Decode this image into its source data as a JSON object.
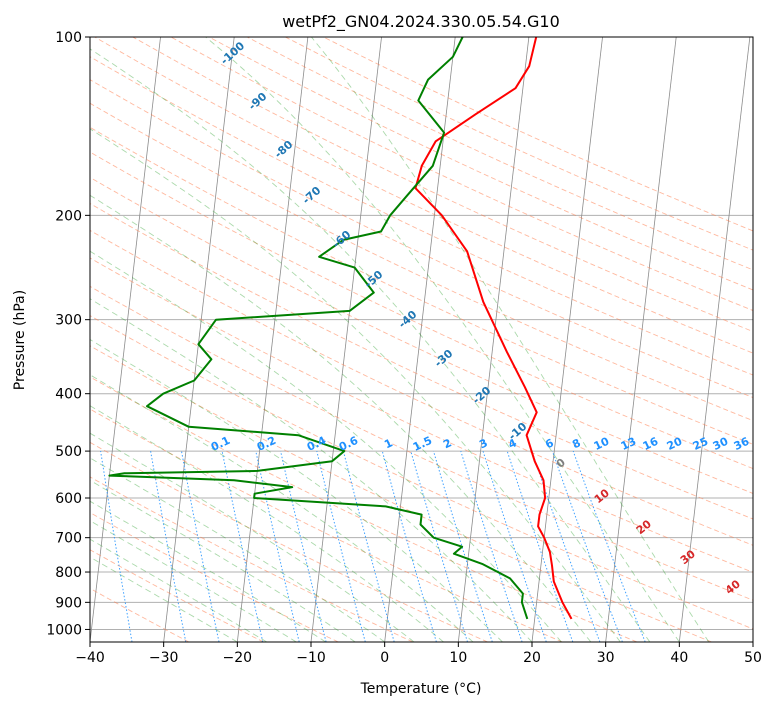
{
  "chart_data": {
    "type": "line",
    "title": "wetPf2_GN04.2024.330.05.54.G10",
    "xlabel": "Temperature (°C)",
    "ylabel": "Pressure (hPa)",
    "xlim": [
      -40,
      50
    ],
    "ylim": [
      1050,
      100
    ],
    "y_scale": "log",
    "grid": true,
    "x_ticks": [
      -40,
      -30,
      -20,
      -10,
      0,
      10,
      20,
      30,
      40,
      50
    ],
    "y_ticks": [
      100,
      200,
      300,
      400,
      500,
      600,
      700,
      800,
      900,
      1000
    ],
    "series": [
      {
        "color": "#ff0000",
        "points": [
          [
            25.0,
            960
          ],
          [
            23.5,
            900
          ],
          [
            22.0,
            830
          ],
          [
            21.5,
            780
          ],
          [
            21.0,
            740
          ],
          [
            20.0,
            700
          ],
          [
            19.0,
            670
          ],
          [
            19.0,
            640
          ],
          [
            19.5,
            600
          ],
          [
            19.0,
            560
          ],
          [
            17.5,
            520
          ],
          [
            16.0,
            470
          ],
          [
            17.0,
            430
          ],
          [
            15.0,
            390
          ],
          [
            12.0,
            340
          ],
          [
            8.0,
            280
          ],
          [
            5.0,
            230
          ],
          [
            1.0,
            200
          ],
          [
            -3.0,
            180
          ],
          [
            -2.5,
            165
          ],
          [
            -1.0,
            150
          ],
          [
            4.0,
            135
          ],
          [
            9.0,
            122
          ],
          [
            10.5,
            112
          ],
          [
            11.0,
            100
          ]
        ]
      },
      {
        "color": "#008000",
        "points": [
          [
            19.0,
            960
          ],
          [
            18.0,
            900
          ],
          [
            18.0,
            870
          ],
          [
            16.0,
            820
          ],
          [
            12.0,
            775
          ],
          [
            8.0,
            745
          ],
          [
            9.0,
            725
          ],
          [
            5.0,
            700
          ],
          [
            3.0,
            665
          ],
          [
            3.0,
            640
          ],
          [
            -2.0,
            620
          ],
          [
            -20.0,
            600
          ],
          [
            -20.0,
            590
          ],
          [
            -15.0,
            575
          ],
          [
            -23.0,
            560
          ],
          [
            -40.0,
            550
          ],
          [
            -38.0,
            545
          ],
          [
            -20.0,
            540
          ],
          [
            -10.0,
            520
          ],
          [
            -8.5,
            500
          ],
          [
            -15.0,
            470
          ],
          [
            -30.0,
            455
          ],
          [
            -36.0,
            420
          ],
          [
            -34.0,
            400
          ],
          [
            -30.0,
            380
          ],
          [
            -28.0,
            350
          ],
          [
            -30.0,
            330
          ],
          [
            -28.0,
            300
          ],
          [
            -10.0,
            290
          ],
          [
            -7.0,
            270
          ],
          [
            -10.0,
            245
          ],
          [
            -15.0,
            235
          ],
          [
            -12.0,
            220
          ],
          [
            -7.0,
            213
          ],
          [
            -6.0,
            200
          ],
          [
            -4.0,
            185
          ],
          [
            -1.0,
            165
          ],
          [
            0.0,
            145
          ],
          [
            -4.0,
            128
          ],
          [
            -3.0,
            118
          ],
          [
            0.0,
            108
          ],
          [
            1.0,
            100
          ]
        ]
      }
    ],
    "dry_adiabat_labels": [
      "-100",
      "-90",
      "-80",
      "-70",
      "-60",
      "-50",
      "-40",
      "-30",
      "-20",
      "-10"
    ],
    "moist_adiabat_labels": [
      "0",
      "10",
      "20",
      "30",
      "40"
    ],
    "mixing_ratio_labels": [
      "0.1",
      "0.2",
      "0.4",
      "0.6",
      "1",
      "1.5",
      "2",
      "3",
      "4",
      "6",
      "8",
      "10",
      "13",
      "16",
      "20",
      "25",
      "30",
      "36"
    ],
    "mixing_ratio_values": [
      0.1,
      0.2,
      0.4,
      0.6,
      1,
      1.5,
      2,
      3,
      4,
      6,
      8,
      10,
      13,
      16,
      20,
      25,
      30,
      36
    ]
  },
  "colors": {
    "temperature": "#ff0000",
    "second_profile": "#008000",
    "dry_adiabat": "#ff7f50",
    "moist_adiabat": "#2ca02c",
    "mixing_ratio": "#1e90ff",
    "isotherm": "#777777"
  }
}
